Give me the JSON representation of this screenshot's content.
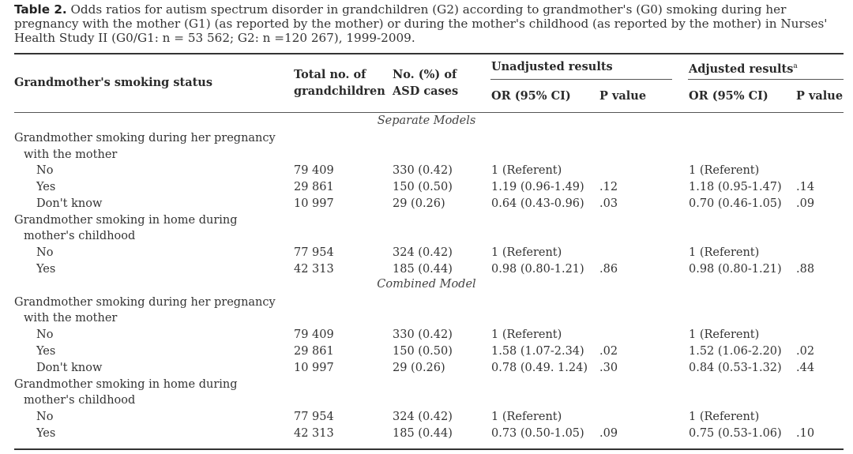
{
  "caption": {
    "label": "Table 2.",
    "line1": "Odds ratios for autism spectrum disorder in grandchildren (G2) according to grandmother's (G0) smoking during her",
    "line2": "pregnancy with the mother (G1) (as reported by the mother) or during the mother's childhood (as reported by the mother) in Nurses'",
    "line3": "Health Study II (G0/G1: n = 53 562; G2: n =120 267), 1999-2009."
  },
  "headers": {
    "status": "Grandmother's smoking status",
    "total_line1": "Total no. of",
    "total_line2": "grandchildren",
    "asd_line1": "No. (%) of",
    "asd_line2": "ASD cases",
    "unadjusted": "Unadjusted results",
    "adjusted": "Adjusted results",
    "adjusted_sup": "a",
    "or_unadj": "OR (95% CI)",
    "p_unadj": "P value",
    "or_adj": "OR (95% CI)",
    "p_adj": "P value"
  },
  "sections": {
    "separate": "Separate Models",
    "combined": "Combined Model"
  },
  "separate": {
    "preg_l1": "Grandmother smoking during her pregnancy",
    "preg_l2": "with the mother",
    "preg_rows": [
      [
        "No",
        "79 409",
        "330 (0.42)",
        "1 (Referent)",
        "",
        "1 (Referent)",
        ""
      ],
      [
        "Yes",
        "29 861",
        "150 (0.50)",
        "1.19 (0.96-1.49)",
        ".12",
        "1.18 (0.95-1.47)",
        ".14"
      ],
      [
        "Don't know",
        "10 997",
        "29 (0.26)",
        "0.64 (0.43-0.96)",
        ".03",
        "0.70 (0.46-1.05)",
        ".09"
      ]
    ],
    "home_l1": "Grandmother smoking in home during",
    "home_l2": "mother's childhood",
    "home_rows": [
      [
        "No",
        "77 954",
        "324 (0.42)",
        "1 (Referent)",
        "",
        "1 (Referent)",
        ""
      ],
      [
        "Yes",
        "42 313",
        "185 (0.44)",
        "0.98 (0.80-1.21)",
        ".86",
        "0.98 (0.80-1.21)",
        ".88"
      ]
    ]
  },
  "combined": {
    "preg_l1": "Grandmother smoking during her pregnancy",
    "preg_l2": "with the mother",
    "preg_rows": [
      [
        "No",
        "79 409",
        "330 (0.42)",
        "1 (Referent)",
        "",
        "1 (Referent)",
        ""
      ],
      [
        "Yes",
        "29 861",
        "150 (0.50)",
        "1.58 (1.07-2.34)",
        ".02",
        "1.52 (1.06-2.20)",
        ".02"
      ],
      [
        "Don't know",
        "10 997",
        "29 (0.26)",
        "0.78 (0.49. 1.24)",
        ".30",
        "0.84 (0.53-1.32)",
        ".44"
      ]
    ],
    "home_l1": "Grandmother smoking in home during",
    "home_l2": "mother's childhood",
    "home_rows": [
      [
        "No",
        "77 954",
        "324 (0.42)",
        "1 (Referent)",
        "",
        "1 (Referent)",
        ""
      ],
      [
        "Yes",
        "42 313",
        "185 (0.44)",
        "0.73 (0.50-1.05)",
        ".09",
        "0.75 (0.53-1.06)",
        ".10"
      ]
    ]
  }
}
